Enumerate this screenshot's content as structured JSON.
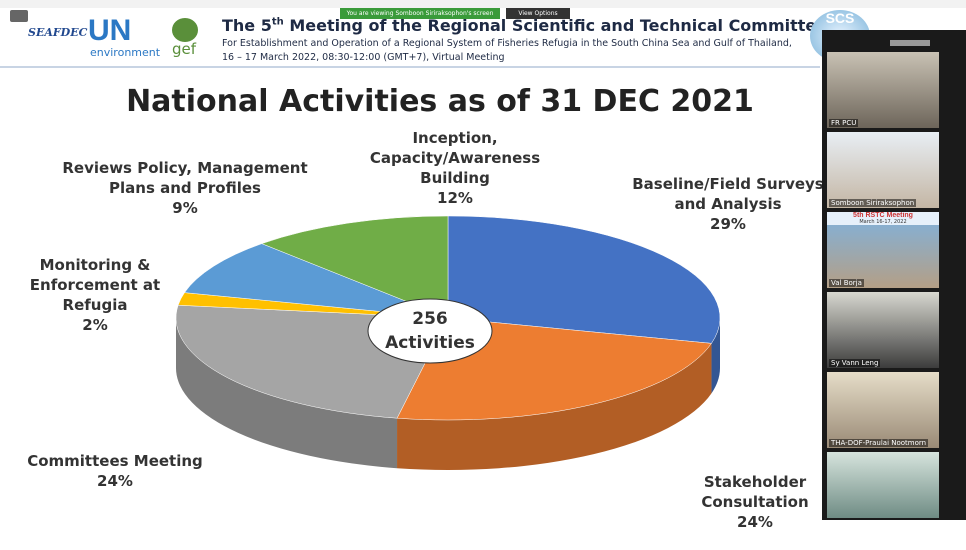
{
  "zoom_bar": {
    "viewing": "You are viewing Somboon Siriraksophon's screen",
    "options": "View Options"
  },
  "logos": {
    "seafdec": "SEAFDEC",
    "un": "UN",
    "environment": "environment",
    "gef": "gef",
    "scs": "SCS"
  },
  "slide_header": {
    "title_start": "The 5",
    "title_sup": "th",
    "title_end": "Meeting of the Regional Scientific and Technical Committee",
    "subtitle_1": "For Establishment and Operation of a Regional System of Fisheries Refugia in the South China Sea and Gulf of Thailand,",
    "subtitle_2": "16 – 17 March 2022, 08:30-12:00 (GMT+7), Virtual Meeting"
  },
  "chart_data": {
    "type": "pie",
    "title": "National Activities as of 31 DEC 2021",
    "categories": [
      "Baseline/Field Surveys and Analysis",
      "Stakeholder Consultation",
      "Committees Meeting",
      "Monitoring & Enforcement at Refugia",
      "Reviews Policy, Management Plans and Profiles",
      "Inception, Capacity/Awareness Building"
    ],
    "values": [
      29,
      24,
      24,
      2,
      9,
      12
    ],
    "value_labels": [
      "29%",
      "24%",
      "24%",
      "2%",
      "9%",
      "12%"
    ],
    "colors": [
      "#4472c4",
      "#ed7d31",
      "#a5a5a5",
      "#ffc000",
      "#5b9bd5",
      "#70ad47"
    ],
    "total": 256,
    "total_label": "Activities"
  },
  "participants": [
    "FR PCU",
    "Somboon Siriraksophon",
    "Val Borja",
    "Sy Vann Leng",
    "THA-DOF-Praulai Nootmorn"
  ],
  "tile_captions": {
    "rstc": "5th RSTC Meeting",
    "rstc_date": "March 16-17, 2022"
  }
}
